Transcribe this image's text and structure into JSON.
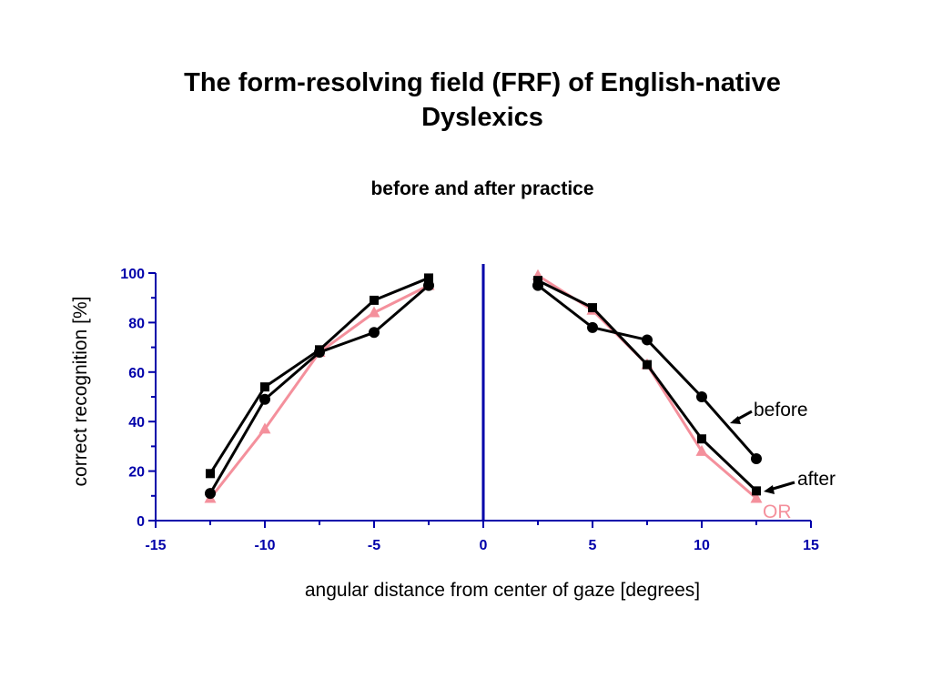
{
  "title_lines": [
    "The form-resolving field (FRF) of English-native",
    "Dyslexics"
  ],
  "subtitle": "before and after practice",
  "chart_data": {
    "type": "line",
    "xlabel": "angular distance from center of gaze  [degrees]",
    "ylabel": "correct recognition  [%]",
    "xlim": [
      -15,
      15
    ],
    "ylim": [
      0,
      100
    ],
    "xticks": [
      -15,
      -10,
      -5,
      0,
      5,
      10,
      15
    ],
    "yticks": [
      0,
      20,
      40,
      60,
      80,
      100
    ],
    "grid": false,
    "colors": {
      "axis": "#0000aa",
      "before": "#000000",
      "after": "#000000",
      "or": "#f4909c"
    },
    "series": [
      {
        "name": "before",
        "marker": "circle",
        "left": {
          "x": [
            -12.5,
            -10,
            -7.5,
            -5,
            -2.5
          ],
          "y": [
            11,
            49,
            68,
            76,
            95
          ]
        },
        "right": {
          "x": [
            2.5,
            5,
            7.5,
            10,
            12.5
          ],
          "y": [
            95,
            78,
            73,
            50,
            25
          ]
        }
      },
      {
        "name": "after",
        "marker": "square",
        "left": {
          "x": [
            -12.5,
            -10,
            -7.5,
            -5,
            -2.5
          ],
          "y": [
            19,
            54,
            69,
            89,
            98
          ]
        },
        "right": {
          "x": [
            2.5,
            5,
            7.5,
            10,
            12.5
          ],
          "y": [
            97,
            86,
            63,
            33,
            12
          ]
        }
      },
      {
        "name": "OR",
        "marker": "triangle",
        "left": {
          "x": [
            -12.5,
            -10,
            -7.5,
            -5,
            -2.5
          ],
          "y": [
            9,
            37,
            68,
            84,
            95
          ]
        },
        "right": {
          "x": [
            2.5,
            5,
            7.5,
            10,
            12.5
          ],
          "y": [
            99,
            85,
            63,
            28,
            9
          ]
        }
      }
    ]
  }
}
